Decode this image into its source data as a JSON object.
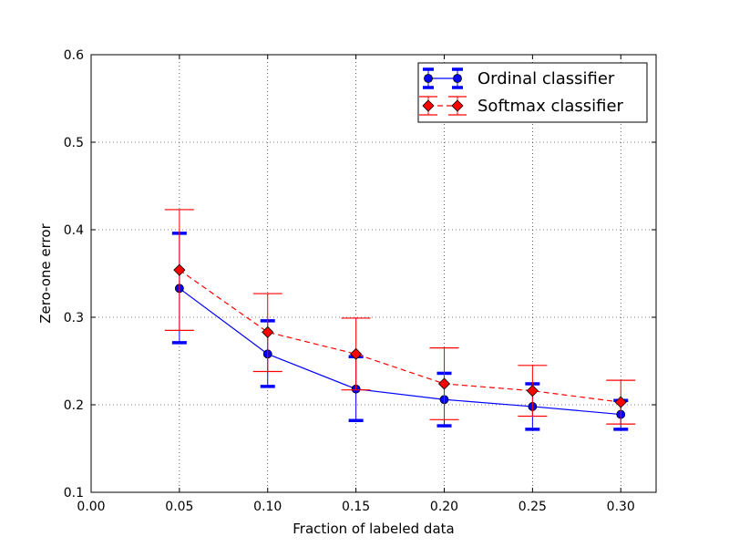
{
  "chart_data": {
    "type": "line",
    "xlabel": "Fraction of labeled data",
    "ylabel": "Zero-one error",
    "xlim": [
      0.0,
      0.32
    ],
    "ylim": [
      0.1,
      0.6
    ],
    "xticks": [
      "0.00",
      "0.05",
      "0.10",
      "0.15",
      "0.20",
      "0.25",
      "0.30"
    ],
    "yticks": [
      "0.1",
      "0.2",
      "0.3",
      "0.4",
      "0.5",
      "0.6"
    ],
    "grid": true,
    "legend_position": "top-right",
    "x": [
      0.05,
      0.1,
      0.15,
      0.2,
      0.25,
      0.3
    ],
    "series": [
      {
        "name": "Ordinal classifier",
        "color": "#0000ff",
        "marker": "circle",
        "linestyle": "solid",
        "values": [
          0.333,
          0.258,
          0.218,
          0.206,
          0.198,
          0.189
        ],
        "err_low": [
          0.271,
          0.221,
          0.182,
          0.176,
          0.172,
          0.172
        ],
        "err_high": [
          0.396,
          0.296,
          0.255,
          0.236,
          0.224,
          0.205
        ]
      },
      {
        "name": "Softmax classifier",
        "color": "#ff0000",
        "marker": "diamond",
        "linestyle": "dashed",
        "values": [
          0.354,
          0.283,
          0.258,
          0.224,
          0.216,
          0.203
        ],
        "err_low": [
          0.285,
          0.238,
          0.217,
          0.183,
          0.187,
          0.178
        ],
        "err_high": [
          0.423,
          0.327,
          0.299,
          0.265,
          0.245,
          0.228
        ]
      }
    ]
  }
}
